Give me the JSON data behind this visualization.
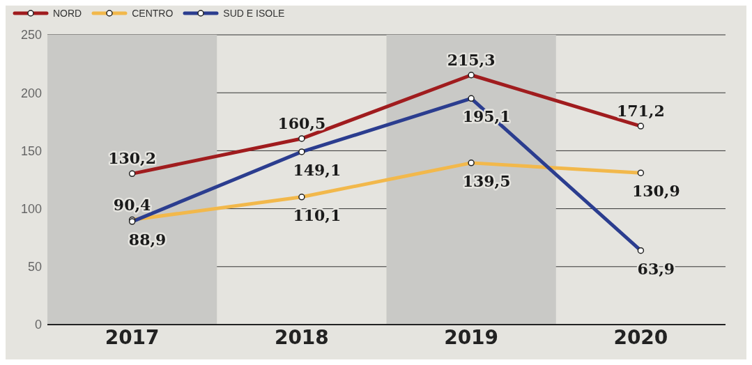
{
  "chart_data": {
    "type": "line",
    "categories": [
      "2017",
      "2018",
      "2019",
      "2020"
    ],
    "series": [
      {
        "name": "NORD",
        "color": "#a01c1e",
        "values": [
          130.2,
          160.5,
          215.3,
          171.2
        ],
        "value_labels": [
          "130,2",
          "160,5",
          "215,3",
          "171,2"
        ]
      },
      {
        "name": "CENTRO",
        "color": "#f2b84b",
        "values": [
          90.4,
          110.1,
          139.5,
          130.9
        ],
        "value_labels": [
          "90,4",
          "110,1",
          "139,5",
          "130,9"
        ]
      },
      {
        "name": "SUD E ISOLE",
        "color": "#2b3d8f",
        "values": [
          88.9,
          149.1,
          195.1,
          63.9
        ],
        "value_labels": [
          "88,9",
          "149,1",
          "195,1",
          "63,9"
        ]
      }
    ],
    "ylim": [
      0,
      250
    ],
    "yticks": [
      0,
      50,
      100,
      150,
      200,
      250
    ],
    "grid": "y",
    "legend": "top left",
    "marker": "circle",
    "line_style": "solid",
    "bands": [
      {
        "axis": "x",
        "from": "2017",
        "to": "2017",
        "color": "#c9c9c6"
      },
      {
        "axis": "x",
        "from": "2019",
        "to": "2019",
        "color": "#c9c9c6"
      }
    ]
  }
}
